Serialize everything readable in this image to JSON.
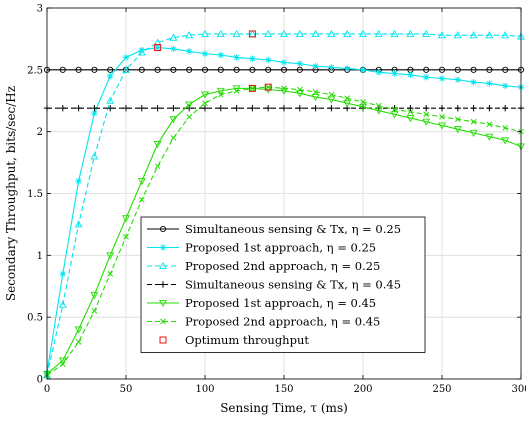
{
  "chart_data": {
    "type": "line",
    "xlabel": "Sensing Time, τ (ms)",
    "ylabel": "Secondary Throughput, bits/sec/Hz",
    "xlim": [
      0,
      300
    ],
    "ylim": [
      0,
      3
    ],
    "xticks": [
      0,
      50,
      100,
      150,
      200,
      250,
      300
    ],
    "yticks": [
      0,
      0.5,
      1,
      1.5,
      2,
      2.5,
      3
    ],
    "xtick_labels": [
      "0",
      "50",
      "100",
      "150",
      "200",
      "250",
      "300"
    ],
    "ytick_labels": [
      "0",
      "0.5",
      "1",
      "1.5",
      "2",
      "2.5",
      "3"
    ],
    "grid": true,
    "legend_position": "bottom-center",
    "series": [
      {
        "name": "Simultaneous sensing & Tx, η = 0.25",
        "color": "#000000",
        "dash": false,
        "marker": "circle",
        "x": [
          0,
          10,
          20,
          30,
          40,
          50,
          60,
          70,
          80,
          90,
          100,
          110,
          120,
          130,
          140,
          150,
          160,
          170,
          180,
          190,
          200,
          210,
          220,
          230,
          240,
          250,
          260,
          270,
          280,
          290,
          300
        ],
        "y": [
          2.5,
          2.5,
          2.5,
          2.5,
          2.5,
          2.5,
          2.5,
          2.5,
          2.5,
          2.5,
          2.5,
          2.5,
          2.5,
          2.5,
          2.5,
          2.5,
          2.5,
          2.5,
          2.5,
          2.5,
          2.5,
          2.5,
          2.5,
          2.5,
          2.5,
          2.5,
          2.5,
          2.5,
          2.5,
          2.5,
          2.5
        ]
      },
      {
        "name": "Proposed 1st approach, η = 0.25",
        "color": "#00e5ee",
        "dash": false,
        "marker": "asterisk",
        "x": [
          0,
          10,
          20,
          30,
          40,
          50,
          60,
          70,
          80,
          90,
          100,
          110,
          120,
          130,
          140,
          150,
          160,
          170,
          180,
          190,
          200,
          210,
          220,
          230,
          240,
          250,
          260,
          270,
          280,
          290,
          300
        ],
        "y": [
          0.05,
          0.85,
          1.6,
          2.15,
          2.45,
          2.6,
          2.66,
          2.68,
          2.67,
          2.65,
          2.63,
          2.62,
          2.6,
          2.59,
          2.58,
          2.56,
          2.55,
          2.53,
          2.52,
          2.51,
          2.5,
          2.48,
          2.47,
          2.46,
          2.44,
          2.43,
          2.42,
          2.4,
          2.39,
          2.37,
          2.36
        ]
      },
      {
        "name": "Proposed 2nd approach, η = 0.25",
        "color": "#00e5ee",
        "dash": true,
        "marker": "triangle-up",
        "x": [
          0,
          10,
          20,
          30,
          40,
          50,
          60,
          70,
          80,
          90,
          100,
          110,
          120,
          130,
          140,
          150,
          160,
          170,
          180,
          190,
          200,
          210,
          220,
          230,
          240,
          250,
          260,
          270,
          280,
          290,
          300
        ],
        "y": [
          0.03,
          0.6,
          1.25,
          1.8,
          2.25,
          2.5,
          2.64,
          2.72,
          2.76,
          2.78,
          2.79,
          2.79,
          2.79,
          2.79,
          2.79,
          2.79,
          2.79,
          2.79,
          2.79,
          2.79,
          2.79,
          2.79,
          2.79,
          2.79,
          2.79,
          2.78,
          2.78,
          2.78,
          2.78,
          2.78,
          2.77
        ]
      },
      {
        "name": "Simultaneous sensing & Tx, η = 0.45",
        "color": "#000000",
        "dash": true,
        "marker": "plus",
        "x": [
          0,
          10,
          20,
          30,
          40,
          50,
          60,
          70,
          80,
          90,
          100,
          110,
          120,
          130,
          140,
          150,
          160,
          170,
          180,
          190,
          200,
          210,
          220,
          230,
          240,
          250,
          260,
          270,
          280,
          290,
          300
        ],
        "y": [
          2.19,
          2.19,
          2.19,
          2.19,
          2.19,
          2.19,
          2.19,
          2.19,
          2.19,
          2.19,
          2.19,
          2.19,
          2.19,
          2.19,
          2.19,
          2.19,
          2.19,
          2.19,
          2.19,
          2.19,
          2.19,
          2.19,
          2.19,
          2.19,
          2.19,
          2.19,
          2.19,
          2.19,
          2.19,
          2.19,
          2.19
        ]
      },
      {
        "name": "Proposed 1st approach, η = 0.45",
        "color": "#22dd00",
        "dash": false,
        "marker": "triangle-down",
        "x": [
          0,
          10,
          20,
          30,
          40,
          50,
          60,
          70,
          80,
          90,
          100,
          110,
          120,
          130,
          140,
          150,
          160,
          170,
          180,
          190,
          200,
          210,
          220,
          230,
          240,
          250,
          260,
          270,
          280,
          290,
          300
        ],
        "y": [
          0.04,
          0.15,
          0.4,
          0.68,
          1.0,
          1.3,
          1.6,
          1.9,
          2.1,
          2.22,
          2.3,
          2.33,
          2.35,
          2.35,
          2.34,
          2.33,
          2.31,
          2.28,
          2.26,
          2.23,
          2.2,
          2.17,
          2.14,
          2.11,
          2.08,
          2.05,
          2.02,
          1.99,
          1.96,
          1.93,
          1.88
        ]
      },
      {
        "name": "Proposed 2nd approach, η = 0.45",
        "color": "#22dd00",
        "dash": true,
        "marker": "x",
        "x": [
          0,
          10,
          20,
          30,
          40,
          50,
          60,
          70,
          80,
          90,
          100,
          110,
          120,
          130,
          140,
          150,
          160,
          170,
          180,
          190,
          200,
          210,
          220,
          230,
          240,
          250,
          260,
          270,
          280,
          290,
          300
        ],
        "y": [
          0.03,
          0.12,
          0.3,
          0.55,
          0.85,
          1.15,
          1.45,
          1.72,
          1.95,
          2.12,
          2.23,
          2.3,
          2.33,
          2.35,
          2.36,
          2.35,
          2.34,
          2.32,
          2.3,
          2.27,
          2.24,
          2.21,
          2.18,
          2.16,
          2.14,
          2.12,
          2.1,
          2.08,
          2.06,
          2.03,
          2.0
        ]
      },
      {
        "name": "Optimum throughput",
        "color": "#ee1111",
        "dash": false,
        "marker": "square",
        "line": false,
        "x": [
          70,
          130,
          130,
          140
        ],
        "y": [
          2.68,
          2.79,
          2.35,
          2.36
        ]
      }
    ]
  }
}
